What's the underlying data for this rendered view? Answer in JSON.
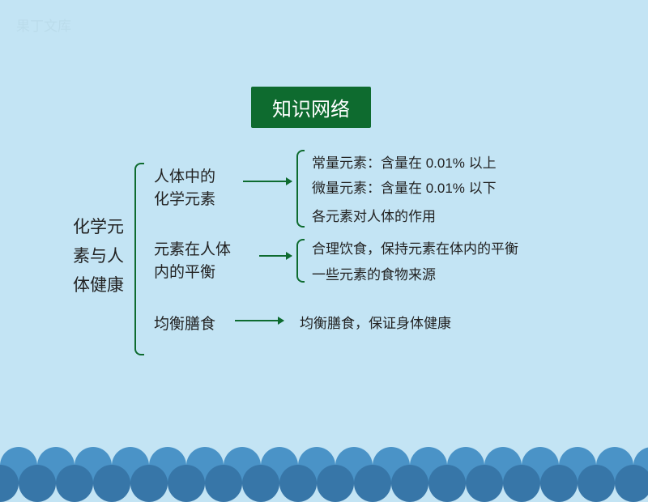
{
  "watermark": "果丁文库",
  "title": "知识网络",
  "root": {
    "line1": "化学元",
    "line2": "素与人",
    "line3": "体健康"
  },
  "level2": {
    "a1": "人体中的",
    "a2": "化学元素",
    "b1": "元素在人体",
    "b2": "内的平衡",
    "c": "均衡膳食"
  },
  "level3": {
    "a": "常量元素：含量在 0.01% 以上",
    "b": "微量元素：含量在 0.01% 以下",
    "c": "各元素对人体的作用",
    "d": "合理饮食，保持元素在体内的平衡",
    "e": "一些元素的食物来源",
    "f": "均衡膳食，保证身体健康"
  },
  "colors": {
    "bg": "#c3e4f4",
    "title_bg": "#0e6b2f",
    "wave1": "#4a93c7",
    "wave2": "#3776a8",
    "line": "#0e6b2f"
  }
}
